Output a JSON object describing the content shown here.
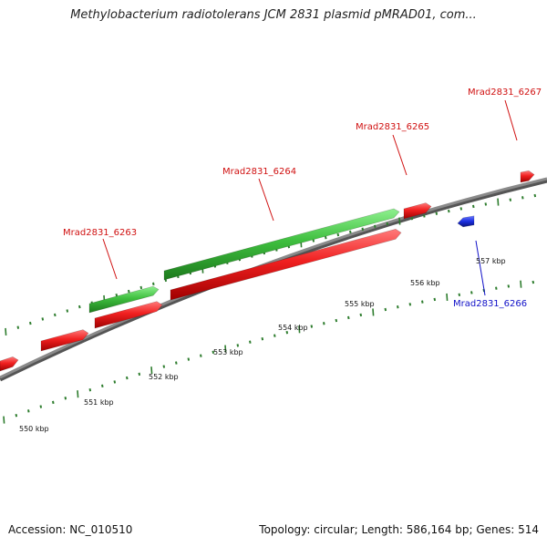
{
  "header": {
    "title": "Methylobacterium radiotolerans JCM 2831 plasmid pMRAD01, com..."
  },
  "footer": {
    "accession": "Accession: NC_010510",
    "topology": "Topology: circular; Length: 586,164 bp; Genes: 514"
  },
  "colors": {
    "forward_gene": "#e82020",
    "reverse_gene": "#1a2ee0",
    "cds_feature": "#3fbf3f",
    "backbone": "#8a8a8a",
    "tick": "#2e7d2e",
    "forward_label": "#d01010",
    "reverse_label": "#1010c8"
  },
  "scale": {
    "unit": "kbp",
    "ticks": [
      "550 kbp",
      "551 kbp",
      "552 kbp",
      "553 kbp",
      "554 kbp",
      "555 kbp",
      "556 kbp",
      "557 kbp"
    ]
  },
  "genes": [
    {
      "name": "Mrad2831_6263",
      "strand": "forward"
    },
    {
      "name": "Mrad2831_6264",
      "strand": "forward"
    },
    {
      "name": "Mrad2831_6265",
      "strand": "forward"
    },
    {
      "name": "Mrad2831_6266",
      "strand": "reverse"
    },
    {
      "name": "Mrad2831_6267",
      "strand": "forward"
    }
  ]
}
